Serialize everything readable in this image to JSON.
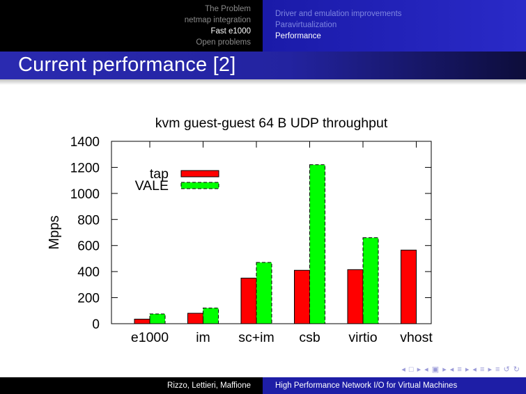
{
  "header": {
    "sections": [
      "The Problem",
      "netmap integration",
      "Fast e1000",
      "Open problems"
    ],
    "active_section": 2,
    "subsections": [
      "Driver and emulation improvements",
      "Paravirtualization",
      "Performance"
    ],
    "active_subsection": 2
  },
  "slide_title": "Current performance [2]",
  "nav_symbols": "◂ □ ▸ ◂ ▣ ▸ ◂ ≡ ▸ ◂ ≡ ▸   ≡   ↺ ↻",
  "footer": {
    "authors": "Rizzo, Lettieri, Maffione",
    "talk_title": "High Performance Network I/O for Virtual Machines"
  },
  "colors": {
    "header_bg": "#000000",
    "accent_blue": "#2323a0",
    "tap": "#ff0000",
    "vale": "#00ff00"
  },
  "chart_data": {
    "type": "bar",
    "title": "kvm guest-guest 64 B UDP throughput",
    "xlabel": "",
    "ylabel": "Mpps",
    "categories": [
      "e1000",
      "im",
      "sc+im",
      "csb",
      "virtio",
      "vhost"
    ],
    "series": [
      {
        "name": "tap",
        "color": "#ff0000",
        "dashed": false,
        "values": [
          35,
          80,
          350,
          410,
          415,
          565
        ]
      },
      {
        "name": "VALE",
        "color": "#00ff00",
        "dashed": true,
        "values": [
          75,
          120,
          470,
          1220,
          660,
          null
        ]
      }
    ],
    "ylim": [
      0,
      1400
    ],
    "yticks": [
      0,
      200,
      400,
      600,
      800,
      1000,
      1200,
      1400
    ],
    "legend_position": "top-left",
    "grid": false
  }
}
